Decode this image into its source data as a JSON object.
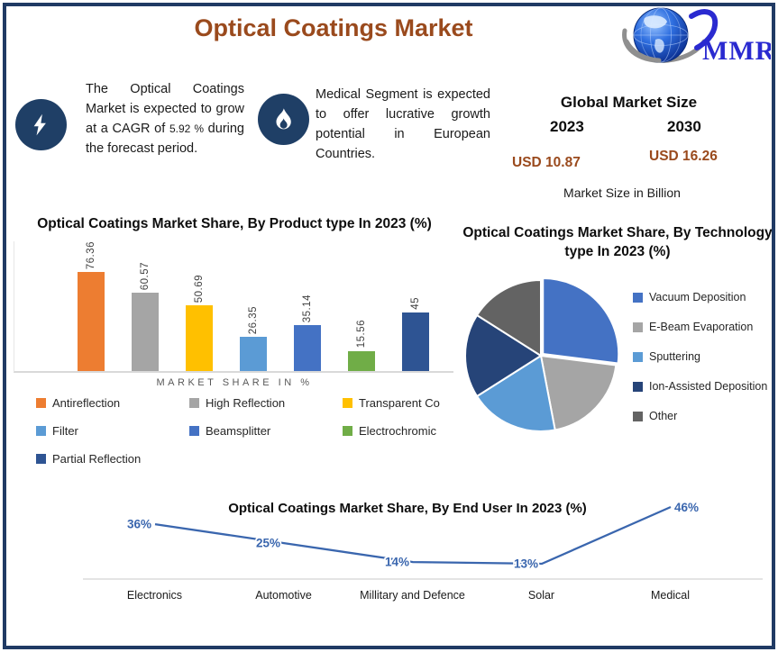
{
  "header": {
    "title": "Optical Coatings Market",
    "logo": {
      "text": "MMR"
    }
  },
  "insights": {
    "cagr": {
      "text_before": "The Optical Coatings Market is expected to grow at a CAGR of ",
      "value": "5.92 %",
      "text_after": " during the forecast period."
    },
    "medical": {
      "text": "Medical Segment is expected to offer lucrative growth potential in European Countries."
    }
  },
  "market_size": {
    "title": "Global Market Size",
    "years": [
      "2023",
      "2030"
    ],
    "values": [
      "USD 10.87",
      "USD 16.26"
    ],
    "caption": "Market Size in Billion"
  },
  "colors": {
    "frame_navy": "#203A64",
    "title_brown": "#9A4A1D",
    "icon_navy": "#1F3F66",
    "axis_gray": "#D9D9D9",
    "line_blue": "#3A66AE"
  },
  "chart_data": [
    {
      "type": "bar",
      "title": "Optical Coatings Market Share, By Product type In 2023 (%)",
      "xlabel": "MARKET SHARE IN %",
      "ylabel": "",
      "ylim": [
        0,
        100
      ],
      "grid": false,
      "legend_position": "bottom",
      "categories": [
        "Antireflection",
        "High Reflection",
        "Transparent Co",
        "Filter",
        "Beamsplitter",
        "Electrochromic",
        "Partial Reflection"
      ],
      "values": [
        76.36,
        60.57,
        50.69,
        26.35,
        35.14,
        15.56,
        45
      ],
      "value_labels": [
        "76.36",
        "60.57",
        "50.69",
        "26.35",
        "35.14",
        "15.56",
        "45"
      ],
      "colors": [
        "#ED7D31",
        "#A5A5A5",
        "#FFC000",
        "#5B9BD5",
        "#4472C4",
        "#70AD47",
        "#2E5493"
      ]
    },
    {
      "type": "pie",
      "title": "Optical Coatings Market Share, By Technology type In 2023 (%)",
      "legend_position": "right",
      "slices": [
        {
          "label": "Vacuum Deposition",
          "value": 27,
          "color": "#4472C4"
        },
        {
          "label": "E-Beam Evaporation",
          "value": 20,
          "color": "#A5A5A5"
        },
        {
          "label": "Sputtering",
          "value": 19,
          "color": "#5B9BD5"
        },
        {
          "label": "Ion-Assisted Deposition",
          "value": 18,
          "color": "#264478"
        },
        {
          "label": "Other",
          "value": 16,
          "color": "#636363"
        }
      ]
    },
    {
      "type": "line",
      "title": "Optical Coatings Market Share, By End User In 2023 (%)",
      "legend_position": "none",
      "grid": false,
      "categories": [
        "Electronics",
        "Automotive",
        "Millitary and Defence",
        "Solar",
        "Medical"
      ],
      "values": [
        36,
        25,
        14,
        13,
        46
      ],
      "value_labels": [
        "36%",
        "25%",
        "14%",
        "13%",
        "46%"
      ],
      "line_color": "#3A66AE"
    }
  ]
}
